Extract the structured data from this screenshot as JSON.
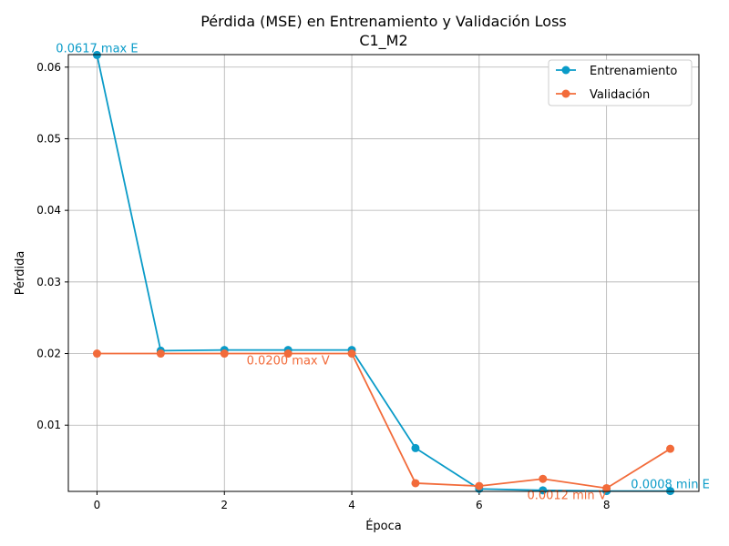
{
  "chart_data": {
    "type": "line",
    "title_line1": "Pérdida (MSE) en Entrenamiento y Validación Loss",
    "title_line2": "C1_M2",
    "xlabel": "Época",
    "ylabel": "Pérdida",
    "xlim": [
      -0.45,
      9.45
    ],
    "ylim": [
      0.00075,
      0.06175
    ],
    "xticks": [
      0,
      2,
      4,
      6,
      8
    ],
    "yticks": [
      0.01,
      0.02,
      0.03,
      0.04,
      0.05,
      0.06
    ],
    "ytick_labels": [
      "0.01",
      "0.02",
      "0.03",
      "0.04",
      "0.05",
      "0.06"
    ],
    "grid": true,
    "legend_position": "top-right",
    "x": [
      0,
      1,
      2,
      3,
      4,
      5,
      6,
      7,
      8,
      9
    ],
    "series": [
      {
        "name": "Entrenamiento",
        "color": "#0a9bc8",
        "values": [
          0.0617,
          0.0204,
          0.0205,
          0.0205,
          0.0205,
          0.0068,
          0.0011,
          0.0009,
          0.0008,
          0.0008
        ]
      },
      {
        "name": "Validación",
        "color": "#f26b3a",
        "values": [
          0.02,
          0.02,
          0.02,
          0.02,
          0.02,
          0.0019,
          0.0015,
          0.0025,
          0.0012,
          0.0067
        ]
      }
    ],
    "annotations": [
      {
        "text": "0.0617 max E",
        "x": 0,
        "y": 0.0617,
        "color": "#0a9bc8",
        "anchor": "middle",
        "dy": -3
      },
      {
        "text": "0.0200 max V",
        "x": 3.0,
        "y": 0.02,
        "color": "#f26b3a",
        "anchor": "middle",
        "dy": 12
      },
      {
        "text": "0.0008 min E",
        "x": 9.0,
        "y": 0.0008,
        "color": "#0a9bc8",
        "anchor": "middle",
        "dy": -3
      },
      {
        "text": "0.0012 min V",
        "x": 8.0,
        "y": 0.0012,
        "color": "#f26b3a",
        "anchor": "end",
        "dy": 12
      }
    ]
  }
}
